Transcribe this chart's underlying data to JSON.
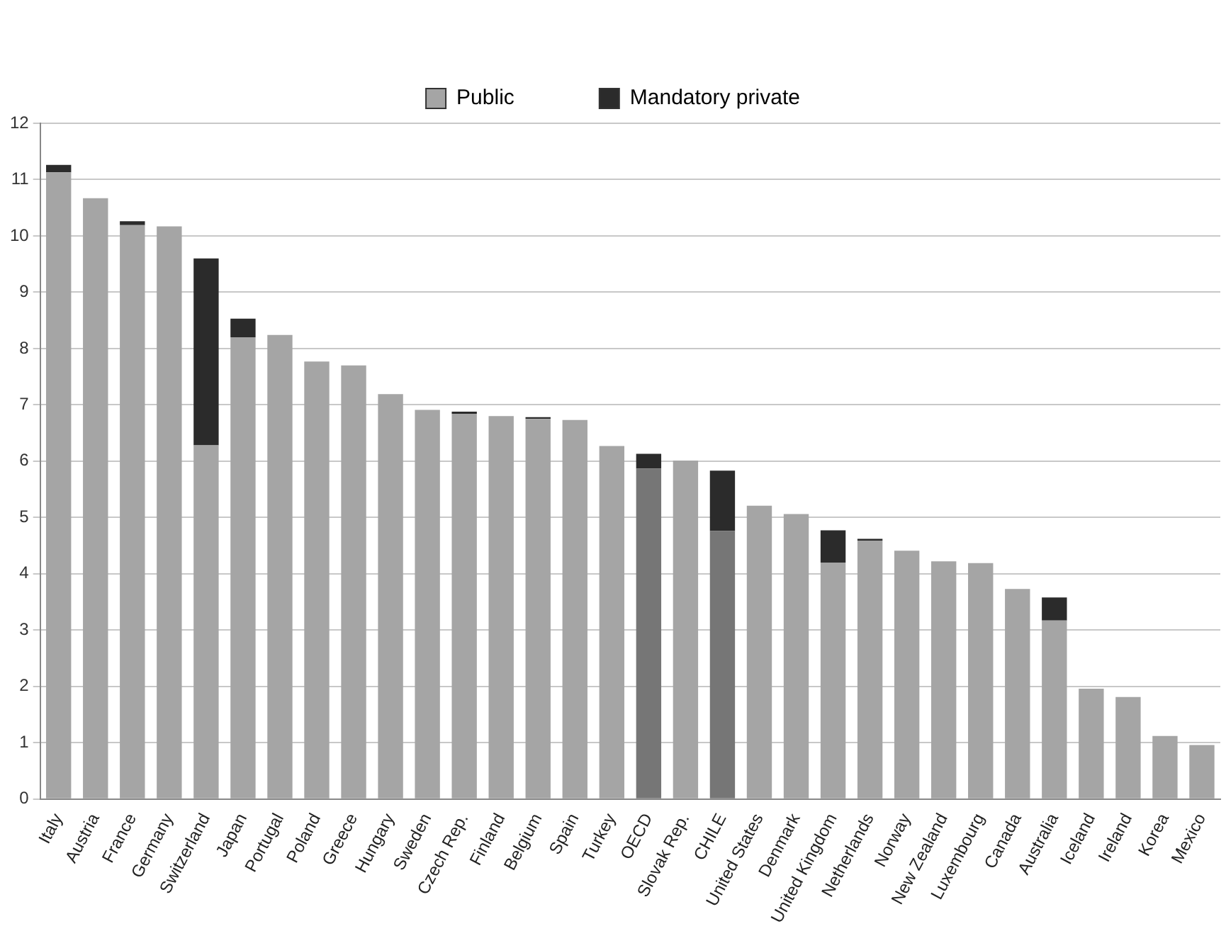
{
  "chart_data": {
    "type": "bar",
    "stacked": true,
    "legend": "top",
    "grid": "y",
    "ylim": [
      0,
      12
    ],
    "yticks": [
      0,
      1,
      2,
      3,
      4,
      5,
      6,
      7,
      8,
      9,
      10,
      11,
      12
    ],
    "categories": [
      "Italy",
      "Austria",
      "France",
      "Germany",
      "Switzerland",
      "Japan",
      "Portugal",
      "Poland",
      "Greece",
      "Hungary",
      "Sweden",
      "Czech Rep.",
      "Finland",
      "Belgium",
      "Spain",
      "Turkey",
      "OECD",
      "Slovak Rep.",
      "CHILE",
      "United States",
      "Denmark",
      "United Kingdom",
      "Netherlands",
      "Norway",
      "New Zealand",
      "Luxembourg",
      "Canada",
      "Australia",
      "Iceland",
      "Ireland",
      "Korea",
      "Mexico"
    ],
    "series": [
      {
        "name": "Public",
        "color": "#a5a5a5",
        "colors": [
          "#a5a5a5",
          "#a5a5a5",
          "#a5a5a5",
          "#a5a5a5",
          "#a5a5a5",
          "#a5a5a5",
          "#a5a5a5",
          "#a5a5a5",
          "#a5a5a5",
          "#a5a5a5",
          "#a5a5a5",
          "#a5a5a5",
          "#a5a5a5",
          "#a5a5a5",
          "#a5a5a5",
          "#a5a5a5",
          "#767676",
          "#a5a5a5",
          "#767676",
          "#a5a5a5",
          "#a5a5a5",
          "#a5a5a5",
          "#a5a5a5",
          "#a5a5a5",
          "#a5a5a5",
          "#a5a5a5",
          "#a5a5a5",
          "#a5a5a5",
          "#a5a5a5",
          "#a5a5a5",
          "#a5a5a5",
          "#a5a5a5"
        ],
        "values": [
          11.13,
          10.67,
          10.19,
          10.17,
          6.28,
          8.2,
          8.24,
          7.77,
          7.7,
          7.19,
          6.91,
          6.84,
          6.8,
          6.75,
          6.73,
          6.27,
          5.87,
          6.01,
          4.76,
          5.21,
          5.06,
          4.2,
          4.59,
          4.41,
          4.22,
          4.19,
          3.73,
          3.17,
          1.96,
          1.81,
          1.12,
          0.96
        ]
      },
      {
        "name": "Mandatory private",
        "color": "#2b2b2b",
        "values": [
          0.13,
          null,
          0.07,
          null,
          3.32,
          0.33,
          null,
          null,
          null,
          null,
          null,
          0.04,
          null,
          0.03,
          null,
          null,
          0.26,
          null,
          1.07,
          null,
          null,
          0.57,
          0.03,
          null,
          null,
          null,
          null,
          0.41,
          null,
          null,
          null,
          null
        ]
      }
    ]
  }
}
